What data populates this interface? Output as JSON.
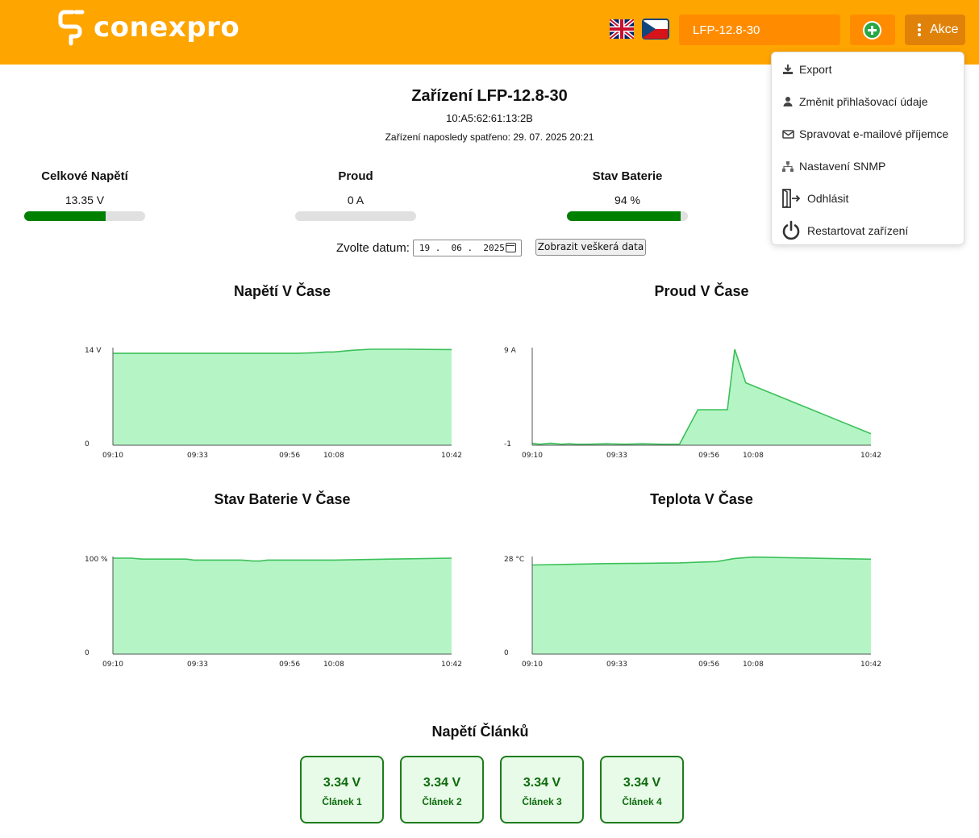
{
  "header": {
    "brand": "conexpro",
    "device_select_value": "LFP-12.8-30",
    "actions_label": "Akce",
    "icons": {
      "flag_uk": "uk-flag-icon",
      "flag_cz": "cz-flag-icon",
      "add": "plus-circle-icon",
      "menu": "vertical-dots-icon"
    },
    "colors": {
      "bar": "#ffa500",
      "button": "#ff8c00",
      "add": "#28a745"
    }
  },
  "dropdown": {
    "items": [
      {
        "label": "Export",
        "icon": "download-icon"
      },
      {
        "label": "Změnit přihlašovací údaje",
        "icon": "user-icon"
      },
      {
        "label": "Spravovat e-mailové příjemce",
        "icon": "envelope-icon"
      },
      {
        "label": "Nastavení SNMP",
        "icon": "network-icon"
      },
      {
        "label": "Odhlásit",
        "icon": "logout-icon"
      },
      {
        "label": "Restartovat zařízení",
        "icon": "power-icon"
      }
    ]
  },
  "device": {
    "title": "Zařízení LFP-12.8-30",
    "mac": "10:A5:62:61:13:2B",
    "last_seen": "Zařízení naposledy spatřeno: 29. 07. 2025 20:21"
  },
  "stats": [
    {
      "label": "Celkové Napětí",
      "value": "13.35 V",
      "fraction": 0.67
    },
    {
      "label": "Proud",
      "value": "0 A",
      "fraction": 0.0
    },
    {
      "label": "Stav Baterie",
      "value": "94 %",
      "fraction": 0.94
    }
  ],
  "date": {
    "label": "Zvolte datum:",
    "value": "19 .  06 .  2025",
    "show_all": "Zobrazit veškerá data"
  },
  "chart_data": [
    {
      "type": "area",
      "title": "Napětí V Čase",
      "x_ticks": [
        "09:10",
        "09:33",
        "09:56",
        "10:08",
        "10:42"
      ],
      "y_tick_labels": [
        "0",
        "14 V"
      ],
      "ylim": [
        0,
        14
      ],
      "x": [
        0,
        10,
        20,
        30,
        40,
        50,
        55,
        58,
        60,
        65,
        70,
        80,
        92
      ],
      "y": [
        13.4,
        13.4,
        13.4,
        13.4,
        13.4,
        13.4,
        13.5,
        13.6,
        13.6,
        13.85,
        14.0,
        14.0,
        13.95
      ]
    },
    {
      "type": "area",
      "title": "Proud V Čase",
      "x_ticks": [
        "09:10",
        "09:33",
        "09:56",
        "10:08",
        "10:42"
      ],
      "y_tick_labels": [
        "-1",
        "9 A"
      ],
      "ylim": [
        -1,
        9
      ],
      "x": [
        0,
        2,
        5,
        8,
        10,
        12,
        15,
        20,
        25,
        30,
        35,
        38,
        40,
        45,
        50,
        51,
        53,
        55,
        58,
        92
      ],
      "y": [
        -0.8,
        -0.9,
        -0.8,
        -0.9,
        -0.85,
        -0.9,
        -0.9,
        -0.85,
        -0.9,
        -0.85,
        -0.9,
        -0.9,
        -0.9,
        2.7,
        2.7,
        2.7,
        2.7,
        9.0,
        5.5,
        0.2
      ]
    },
    {
      "type": "area",
      "title": "Stav Baterie V Čase",
      "x_ticks": [
        "09:10",
        "09:33",
        "09:56",
        "10:08",
        "10:42"
      ],
      "y_tick_labels": [
        "0",
        "100 %"
      ],
      "ylim": [
        0,
        100
      ],
      "x": [
        0,
        5,
        8,
        15,
        20,
        22,
        35,
        38,
        40,
        42,
        50,
        60,
        75,
        92
      ],
      "y": [
        100,
        100,
        99,
        99,
        99,
        98,
        98,
        97,
        97,
        98,
        98,
        98,
        99,
        100
      ]
    },
    {
      "type": "area",
      "title": "Teplota V Čase",
      "x_ticks": [
        "09:10",
        "09:33",
        "09:56",
        "10:08",
        "10:42"
      ],
      "y_tick_labels": [
        "0",
        "28 °C"
      ],
      "ylim": [
        0,
        28
      ],
      "x": [
        0,
        10,
        20,
        30,
        40,
        45,
        50,
        55,
        60,
        92
      ],
      "y": [
        26.0,
        26.2,
        26.4,
        26.5,
        26.6,
        26.8,
        27.0,
        27.9,
        28.3,
        27.7
      ]
    }
  ],
  "cells": {
    "title": "Napětí Článků",
    "items": [
      {
        "value": "3.34 V",
        "name": "Článek 1"
      },
      {
        "value": "3.34 V",
        "name": "Článek 2"
      },
      {
        "value": "3.34 V",
        "name": "Článek 3"
      },
      {
        "value": "3.34 V",
        "name": "Článek 4"
      }
    ]
  }
}
